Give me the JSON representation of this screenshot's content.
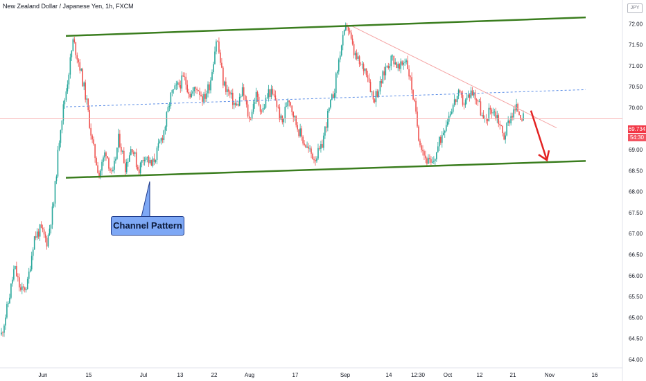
{
  "header": {
    "title": "New Zealand Dollar / Japanese Yen, 1h, FXCM",
    "currency": "JPY"
  },
  "annotation": {
    "label": "Channel Pattern"
  },
  "price_tag": {
    "price": "69.734",
    "countdown": "54:30",
    "color": "#f23645"
  },
  "colors": {
    "channel": "#3a7d1e",
    "trend": "#f5a3a3",
    "midline": "#5b8de6",
    "arrow": "#e32323",
    "up": "#26a69a",
    "down": "#ef5350"
  },
  "chart_data": {
    "type": "candlestick",
    "title": "New Zealand Dollar / Japanese Yen, 1h, FXCM",
    "ylim": [
      63.9,
      72.45
    ],
    "y_ticks": [
      "72.00",
      "71.50",
      "71.00",
      "70.50",
      "70.00",
      "69.50",
      "69.00",
      "68.50",
      "68.00",
      "67.50",
      "67.00",
      "66.50",
      "66.00",
      "65.50",
      "65.00",
      "64.50",
      "64.00"
    ],
    "x_ticks": [
      "Jun",
      "15",
      "Jul",
      "13",
      "22",
      "Aug",
      "17",
      "Sep",
      "14",
      "12:30",
      "Oct",
      "12",
      "21",
      "Nov",
      "16"
    ],
    "close_path": [
      64.6,
      65.3,
      66.2,
      65.6,
      65.8,
      66.9,
      67.1,
      66.8,
      67.7,
      69.5,
      70.5,
      71.6,
      71.0,
      70.2,
      69.1,
      68.4,
      69.0,
      68.3,
      69.3,
      68.6,
      69.1,
      68.5,
      68.9,
      68.6,
      69.0,
      69.5,
      70.3,
      70.5,
      70.7,
      70.3,
      70.5,
      70.2,
      70.6,
      71.7,
      70.6,
      70.3,
      70.0,
      70.4,
      69.7,
      70.3,
      69.9,
      70.4,
      70.2,
      69.6,
      70.3,
      69.7,
      69.3,
      69.0,
      68.8,
      69.0,
      69.8,
      70.4,
      71.4,
      72.0,
      71.3,
      71.0,
      70.9,
      70.2,
      70.5,
      71.0,
      71.2,
      70.9,
      71.2,
      70.4,
      69.3,
      68.8,
      68.6,
      69.1,
      69.6,
      70.0,
      70.3,
      70.1,
      70.4,
      70.2,
      69.6,
      70.0,
      69.8,
      69.3,
      69.8,
      70.0,
      69.734
    ],
    "channel_upper": {
      "from": [
        "Jun 8",
        71.71
      ],
      "to": [
        "Nov 20",
        72.15
      ]
    },
    "channel_lower": {
      "from": [
        "Jun 8",
        68.33
      ],
      "to": [
        "Nov 20",
        68.73
      ]
    },
    "mid_line": {
      "from": [
        "Jun 8",
        70.02
      ],
      "to": [
        "Nov 20",
        70.43
      ]
    },
    "trend_line": {
      "from": [
        "Sep 1",
        71.95
      ],
      "to": [
        "Oct 31",
        69.52
      ]
    },
    "projection_arrow": {
      "from": [
        "Oct 26",
        69.93
      ],
      "to": [
        "Oct 31",
        68.75
      ]
    },
    "current_price": 69.734
  }
}
